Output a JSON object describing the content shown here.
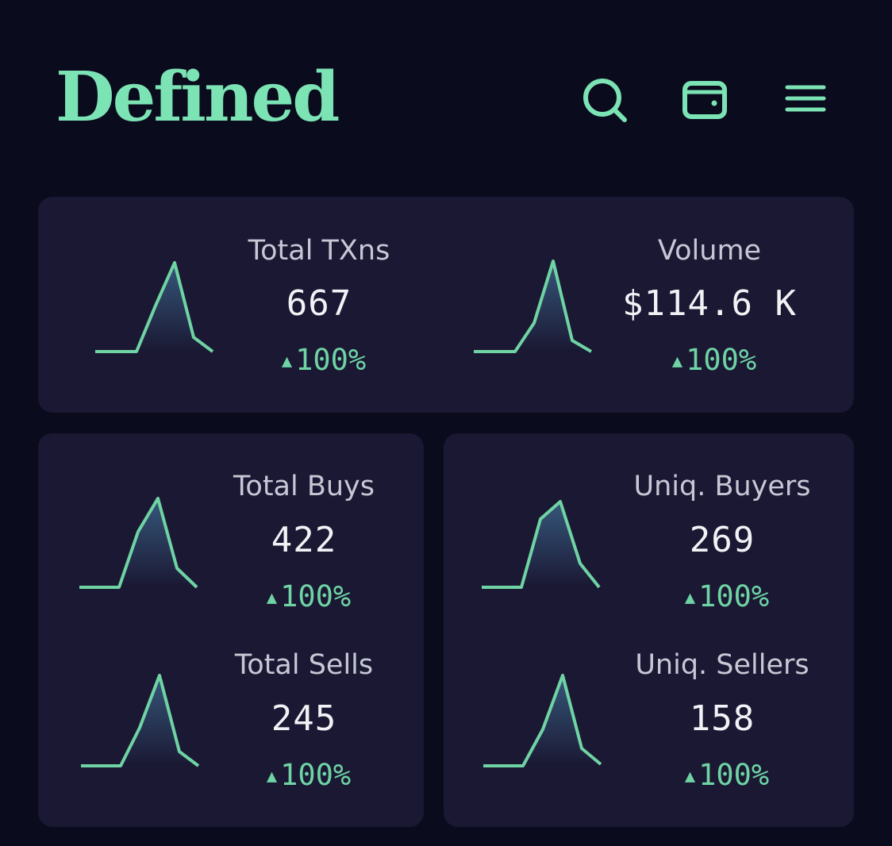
{
  "header": {
    "logo": "Defined",
    "icons": [
      "search-icon",
      "wallet-icon",
      "menu-icon"
    ]
  },
  "colors": {
    "background": "#0b0b1e",
    "card": "#1a1833",
    "accent": "#7be3b4",
    "positive": "#6fd3a4"
  },
  "stats": [
    {
      "label": "Total TXns",
      "value": "667",
      "change": "100%"
    },
    {
      "label": "Volume",
      "value": "$114.6 K",
      "change": "100%"
    },
    {
      "label": "Total Buys",
      "value": "422",
      "change": "100%"
    },
    {
      "label": "Uniq. Buyers",
      "value": "269",
      "change": "100%"
    },
    {
      "label": "Total Sells",
      "value": "245",
      "change": "100%"
    },
    {
      "label": "Uniq. Sellers",
      "value": "158",
      "change": "100%"
    }
  ]
}
